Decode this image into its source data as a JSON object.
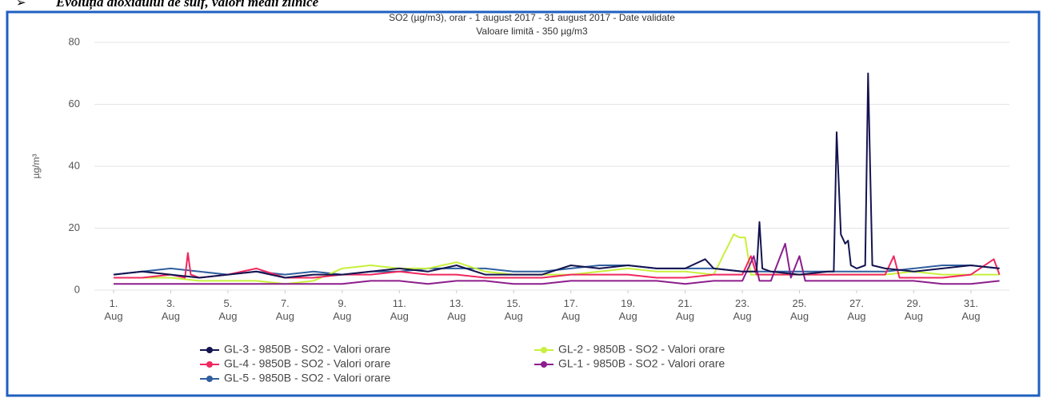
{
  "heading": "Evoluția dioxidului de sulf, valori medii zilnice",
  "chart_data": {
    "type": "line",
    "title": "SO2 (µg/m3), orar -  1 august 2017 - 31 august 2017 - Date validate",
    "subtitle": "Valoare limită - 350 µg/m3",
    "y_label": "µg/m³",
    "xlim": [
      1,
      32
    ],
    "ylim": [
      0,
      80
    ],
    "yticks": [
      0,
      20,
      40,
      60,
      80
    ],
    "xticks": [
      {
        "value": 1,
        "label": "1. Aug"
      },
      {
        "value": 3,
        "label": "3. Aug"
      },
      {
        "value": 5,
        "label": "5. Aug"
      },
      {
        "value": 7,
        "label": "7. Aug"
      },
      {
        "value": 9,
        "label": "9. Aug"
      },
      {
        "value": 11,
        "label": "11. Aug"
      },
      {
        "value": 13,
        "label": "13. Aug"
      },
      {
        "value": 15,
        "label": "15. Aug"
      },
      {
        "value": 17,
        "label": "17. Aug"
      },
      {
        "value": 19,
        "label": "19. Aug"
      },
      {
        "value": 21,
        "label": "21. Aug"
      },
      {
        "value": 23,
        "label": "23. Aug"
      },
      {
        "value": 25,
        "label": "25. Aug"
      },
      {
        "value": 27,
        "label": "27. Aug"
      },
      {
        "value": 29,
        "label": "29. Aug"
      },
      {
        "value": 31,
        "label": "31. Aug"
      }
    ],
    "grid": true,
    "series": [
      {
        "name": "GL-3 - 9850B - SO2 - Valori orare",
        "color": "#141450",
        "x": [
          1,
          2,
          3,
          4,
          5,
          6,
          7,
          8,
          9,
          10,
          11,
          12,
          13,
          14,
          15,
          16,
          17,
          18,
          19,
          20,
          21,
          21.7,
          22,
          23,
          23.5,
          23.6,
          23.7,
          24,
          25,
          26,
          26.2,
          26.3,
          26.45,
          26.6,
          26.7,
          26.8,
          27,
          27.3,
          27.4,
          27.55,
          28,
          29,
          30,
          31,
          32
        ],
        "values": [
          5,
          6,
          5,
          4,
          5,
          6,
          4,
          5,
          5,
          6,
          7,
          6,
          8,
          5,
          5,
          5,
          8,
          7,
          8,
          7,
          7,
          10,
          7,
          6,
          6,
          22,
          7,
          6,
          5,
          6,
          6,
          51,
          18,
          15,
          16,
          8,
          7,
          8,
          70,
          8,
          7,
          6,
          7,
          8,
          7
        ]
      },
      {
        "name": "GL-2 - 9850B - SO2 - Valori orare",
        "color": "#c8f03c",
        "x": [
          1,
          2,
          3,
          4,
          5,
          6,
          7,
          8,
          9,
          10,
          11,
          12,
          13,
          14,
          15,
          16,
          17,
          18,
          19,
          20,
          21,
          22,
          22.7,
          22.9,
          23.1,
          23.3,
          24,
          25,
          26,
          27,
          28,
          29,
          30,
          31,
          32
        ],
        "values": [
          4,
          4,
          4,
          3,
          3,
          3,
          2,
          3,
          7,
          8,
          7,
          7,
          9,
          6,
          5,
          5,
          5,
          6,
          7,
          6,
          6,
          5,
          18,
          17,
          17,
          5,
          5,
          5,
          5,
          5,
          5,
          6,
          5,
          5,
          5
        ]
      },
      {
        "name": "GL-4 - 9850B - SO2 - Valori orare",
        "color": "#f0285f",
        "x": [
          1,
          2,
          3,
          3.5,
          3.6,
          3.7,
          4,
          5,
          6,
          7,
          8,
          9,
          10,
          11,
          12,
          13,
          14,
          15,
          16,
          17,
          18,
          19,
          20,
          21,
          22,
          23,
          23.3,
          23.5,
          24,
          25,
          26,
          27,
          28,
          28.3,
          28.5,
          29,
          30,
          31,
          31.8,
          32
        ],
        "values": [
          4,
          4,
          5,
          4,
          12,
          5,
          4,
          5,
          7,
          4,
          4,
          5,
          5,
          6,
          5,
          5,
          4,
          4,
          4,
          5,
          5,
          5,
          4,
          4,
          5,
          5,
          11,
          5,
          5,
          5,
          5,
          5,
          5,
          11,
          4,
          4,
          4,
          5,
          10,
          5
        ]
      },
      {
        "name": "GL-1 - 9850B - SO2 - Valori orare",
        "color": "#8c1e8c",
        "x": [
          1,
          2,
          3,
          4,
          5,
          6,
          7,
          8,
          9,
          10,
          11,
          12,
          13,
          14,
          15,
          16,
          17,
          18,
          19,
          20,
          21,
          22,
          23,
          23.4,
          23.6,
          24,
          24.5,
          24.7,
          25,
          25.2,
          26,
          27,
          28,
          29,
          30,
          31,
          32
        ],
        "values": [
          2,
          2,
          2,
          2,
          2,
          2,
          2,
          2,
          2,
          3,
          3,
          2,
          3,
          3,
          2,
          2,
          3,
          3,
          3,
          3,
          2,
          3,
          3,
          11,
          3,
          3,
          15,
          4,
          11,
          3,
          3,
          3,
          3,
          3,
          2,
          2,
          3
        ]
      },
      {
        "name": "GL-5 - 9850B - SO2 - Valori orare",
        "color": "#2f5f9f",
        "x": [
          1,
          2,
          3,
          4,
          5,
          6,
          7,
          8,
          9,
          10,
          11,
          12,
          13,
          14,
          15,
          16,
          17,
          18,
          19,
          20,
          21,
          22,
          23,
          24,
          25,
          26,
          27,
          28,
          29,
          30,
          31,
          32
        ],
        "values": [
          5,
          6,
          7,
          6,
          5,
          6,
          5,
          6,
          5,
          6,
          6,
          7,
          7,
          7,
          6,
          6,
          7,
          8,
          8,
          7,
          7,
          7,
          6,
          6,
          6,
          6,
          6,
          6,
          7,
          8,
          8,
          7
        ]
      }
    ]
  }
}
